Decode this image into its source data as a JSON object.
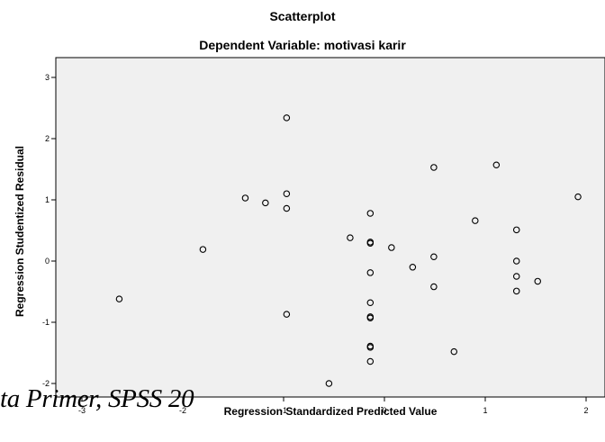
{
  "chart_data": {
    "type": "scatter",
    "title": "Scatterplot",
    "subtitle": "Dependent Variable: motivasi karir",
    "xlabel": "Regression Standardized Predicted Value",
    "ylabel": "Regression Studentized Residual",
    "xlim": [
      -3.3,
      2.2
    ],
    "ylim": [
      -2.1,
      3.1
    ],
    "x_ticks": [
      "-3",
      "-2",
      "-1",
      "0",
      "1",
      "2"
    ],
    "y_ticks": [
      "3",
      "2",
      "1",
      "0",
      "-1",
      "-2"
    ],
    "grid": false,
    "background": "#f0f0f0",
    "marker_color": "#000000",
    "points": [
      {
        "x": -0.97,
        "y": 2.34
      },
      {
        "x": 0.49,
        "y": 1.53
      },
      {
        "x": 1.11,
        "y": 1.57
      },
      {
        "x": 1.92,
        "y": 1.05
      },
      {
        "x": -1.38,
        "y": 1.03
      },
      {
        "x": -1.18,
        "y": 0.95
      },
      {
        "x": -0.97,
        "y": 1.1
      },
      {
        "x": -0.97,
        "y": 0.86
      },
      {
        "x": -0.14,
        "y": 0.78
      },
      {
        "x": 0.9,
        "y": 0.66
      },
      {
        "x": 1.31,
        "y": 0.51
      },
      {
        "x": -0.34,
        "y": 0.38
      },
      {
        "x": -0.14,
        "y": 0.31
      },
      {
        "x": -0.14,
        "y": 0.29
      },
      {
        "x": 0.07,
        "y": 0.22
      },
      {
        "x": -1.8,
        "y": 0.19
      },
      {
        "x": 0.49,
        "y": 0.07
      },
      {
        "x": 1.31,
        "y": 0.0
      },
      {
        "x": 0.28,
        "y": -0.1
      },
      {
        "x": -0.14,
        "y": -0.19
      },
      {
        "x": 1.31,
        "y": -0.25
      },
      {
        "x": 1.52,
        "y": -0.33
      },
      {
        "x": 0.49,
        "y": -0.42
      },
      {
        "x": 1.31,
        "y": -0.49
      },
      {
        "x": -2.63,
        "y": -0.62
      },
      {
        "x": -0.14,
        "y": -0.68
      },
      {
        "x": -0.97,
        "y": -0.87
      },
      {
        "x": -0.14,
        "y": -0.91
      },
      {
        "x": -0.14,
        "y": -0.93
      },
      {
        "x": -0.14,
        "y": -1.39
      },
      {
        "x": -0.14,
        "y": -1.41
      },
      {
        "x": 0.69,
        "y": -1.48
      },
      {
        "x": -0.14,
        "y": -1.64
      },
      {
        "x": -0.55,
        "y": -2.0
      }
    ]
  },
  "caption": {
    "text": "ta Primer, SPSS 20"
  }
}
